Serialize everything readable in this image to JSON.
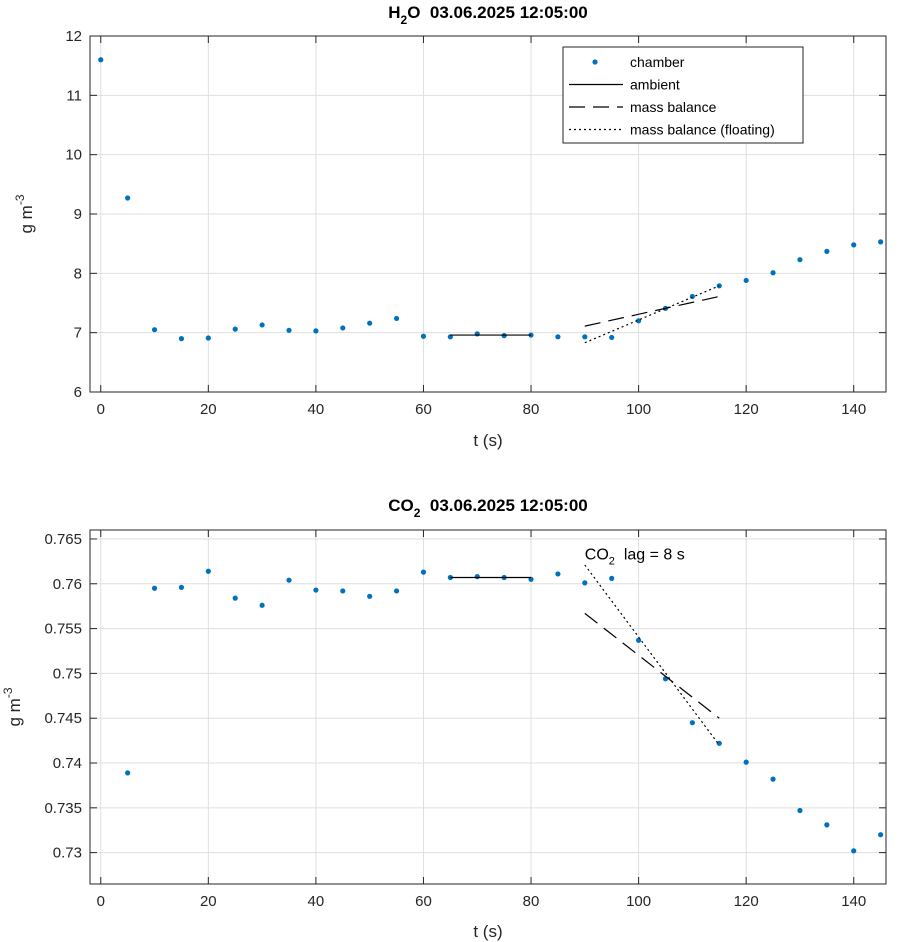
{
  "chart_data": [
    {
      "type": "scatter",
      "title_parts": [
        "H",
        "2",
        "O  03.06.2025 12:05:00"
      ],
      "xlabel": "t (s)",
      "ylabel_parts": [
        "g m",
        "-3"
      ],
      "xlim": [
        -2,
        146
      ],
      "ylim": [
        6,
        12
      ],
      "xticks": [
        0,
        20,
        40,
        60,
        80,
        100,
        120,
        140
      ],
      "yticks": [
        6,
        7,
        8,
        9,
        10,
        11,
        12
      ],
      "ytick_labels": [
        "6",
        "7",
        "8",
        "9",
        "10",
        "11",
        "12"
      ],
      "grid": true,
      "legend_position": "top-right",
      "legend": [
        {
          "label": "chamber",
          "style": "dot"
        },
        {
          "label": "ambient",
          "style": "solid"
        },
        {
          "label": "mass balance",
          "style": "dashed"
        },
        {
          "label": "mass balance (floating)",
          "style": "dotted"
        }
      ],
      "series": [
        {
          "name": "chamber",
          "style": "dot",
          "color": "#0072BD",
          "x": [
            0,
            5,
            10,
            15,
            20,
            25,
            30,
            35,
            40,
            45,
            50,
            55,
            60,
            65,
            70,
            75,
            80,
            85,
            90,
            95,
            100,
            105,
            110,
            115,
            120,
            125,
            130,
            135,
            140,
            145
          ],
          "y": [
            11.6,
            9.27,
            7.05,
            6.9,
            6.91,
            7.06,
            7.13,
            7.04,
            7.03,
            7.08,
            7.16,
            7.24,
            6.94,
            6.93,
            6.98,
            6.95,
            6.96,
            6.93,
            6.93,
            6.92,
            7.2,
            7.41,
            7.61,
            7.79,
            7.88,
            8.01,
            8.23,
            8.37,
            8.48,
            8.53
          ]
        },
        {
          "name": "ambient",
          "style": "solid",
          "color": "#000000",
          "x": [
            65,
            80
          ],
          "y": [
            6.96,
            6.96
          ]
        },
        {
          "name": "mass balance",
          "style": "dashed",
          "color": "#000000",
          "x": [
            90,
            115
          ],
          "y": [
            7.11,
            7.61
          ]
        },
        {
          "name": "mass balance (floating)",
          "style": "dotted",
          "color": "#000000",
          "x": [
            90,
            115
          ],
          "y": [
            6.83,
            7.79
          ]
        }
      ],
      "annotation_parts": []
    },
    {
      "type": "scatter",
      "title_parts": [
        "CO",
        "2",
        "  03.06.2025 12:05:00"
      ],
      "xlabel": "t (s)",
      "ylabel_parts": [
        "g m",
        "-3"
      ],
      "xlim": [
        -2,
        146
      ],
      "ylim": [
        0.7265,
        0.766
      ],
      "xticks": [
        0,
        20,
        40,
        60,
        80,
        100,
        120,
        140
      ],
      "yticks": [
        0.73,
        0.735,
        0.74,
        0.745,
        0.75,
        0.755,
        0.76,
        0.765
      ],
      "ytick_labels": [
        "0.73",
        "0.735",
        "0.74",
        "0.745",
        "0.75",
        "0.755",
        "0.76",
        "0.765"
      ],
      "grid": true,
      "legend": [],
      "series": [
        {
          "name": "chamber",
          "style": "dot",
          "color": "#0072BD",
          "x": [
            5,
            10,
            15,
            20,
            25,
            30,
            35,
            40,
            45,
            50,
            55,
            60,
            65,
            70,
            75,
            80,
            85,
            90,
            95,
            100,
            105,
            110,
            115,
            120,
            125,
            130,
            135,
            140,
            145
          ],
          "y": [
            0.7389,
            0.7595,
            0.7596,
            0.7614,
            0.7584,
            0.7576,
            0.7604,
            0.7593,
            0.7592,
            0.7586,
            0.7592,
            0.7613,
            0.7607,
            0.7608,
            0.7607,
            0.7605,
            0.7611,
            0.7601,
            0.7606,
            0.7537,
            0.7494,
            0.7445,
            0.7422,
            0.7401,
            0.7382,
            0.7347,
            0.7331,
            0.7302,
            0.732
          ]
        },
        {
          "name": "ambient",
          "style": "solid",
          "color": "#000000",
          "x": [
            65,
            80
          ],
          "y": [
            0.7607,
            0.7607
          ]
        },
        {
          "name": "mass balance",
          "style": "dashed",
          "color": "#000000",
          "x": [
            90,
            115
          ],
          "y": [
            0.7567,
            0.745
          ]
        },
        {
          "name": "mass balance (floating)",
          "style": "dotted",
          "color": "#000000",
          "x": [
            90,
            115
          ],
          "y": [
            0.7621,
            0.742
          ]
        }
      ],
      "annotation_parts": [
        "CO",
        "2",
        "  lag = 8 s"
      ],
      "annotation_at": {
        "x": 90,
        "y": 0.7627
      }
    }
  ]
}
